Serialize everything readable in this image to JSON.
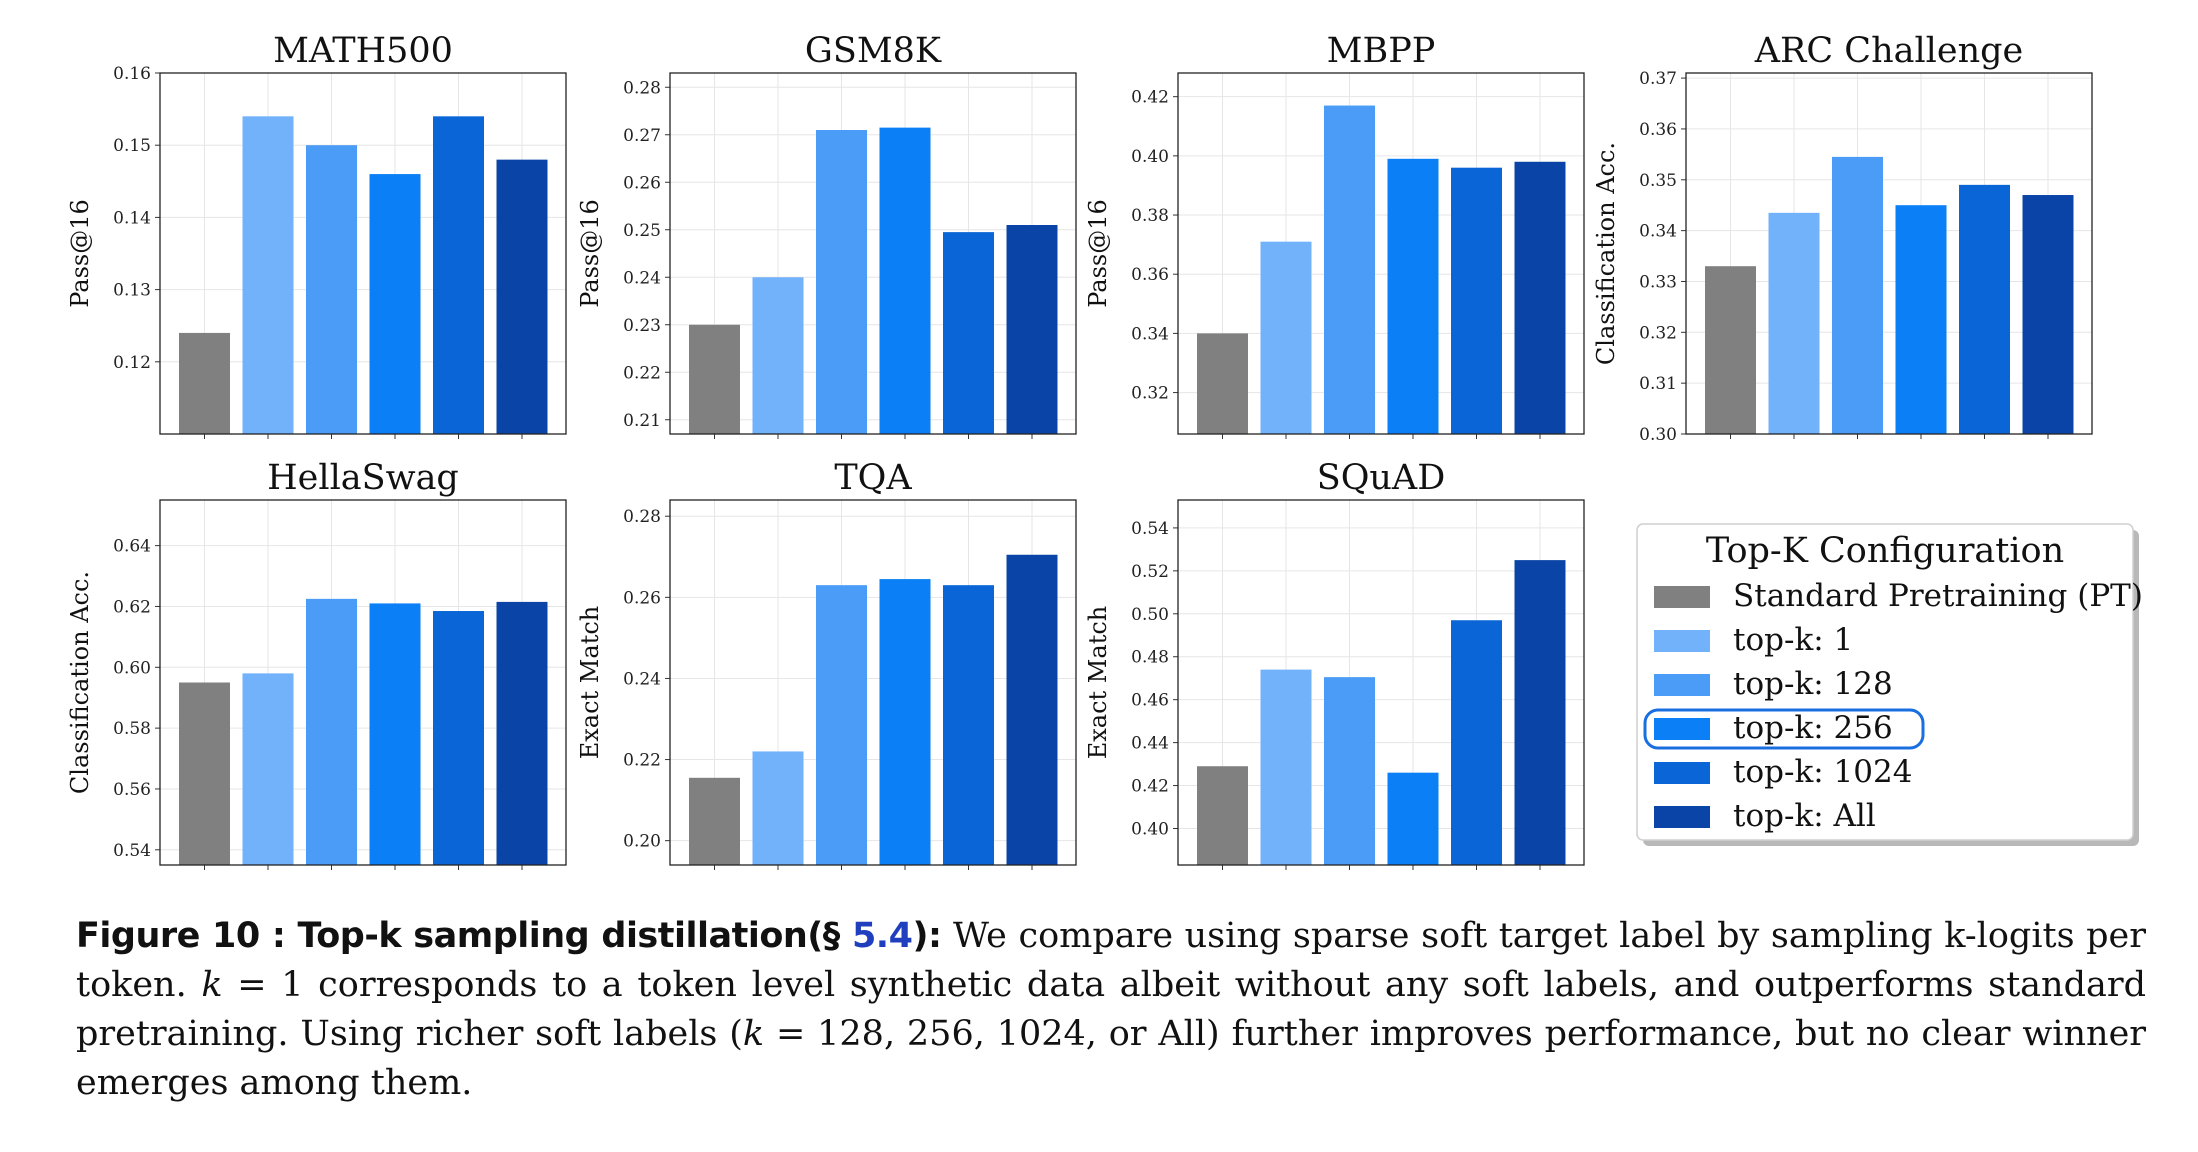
{
  "colors": {
    "pt": "#808080",
    "k1": "#72b2fb",
    "k128": "#4a9cf6",
    "k256": "#0a7ff6",
    "k1024": "#0a66d6",
    "kall": "#0a44a6",
    "highlight": "#1a6fe0"
  },
  "chart_data": [
    {
      "type": "bar",
      "title": "MATH500",
      "ylabel": "Pass@16",
      "ylim": [
        0.11,
        0.16
      ],
      "yticks": [
        "0.12",
        "0.13",
        "0.14",
        "0.15",
        "0.16"
      ],
      "series": [
        {
          "name": "Standard Pretraining (PT)",
          "value": 0.124
        },
        {
          "name": "top-k: 1",
          "value": 0.154
        },
        {
          "name": "top-k: 128",
          "value": 0.15
        },
        {
          "name": "top-k: 256",
          "value": 0.146
        },
        {
          "name": "top-k: 1024",
          "value": 0.154
        },
        {
          "name": "top-k: All",
          "value": 0.148
        }
      ]
    },
    {
      "type": "bar",
      "title": "GSM8K",
      "ylabel": "Pass@16",
      "ylim": [
        0.207,
        0.283
      ],
      "yticks": [
        "0.21",
        "0.22",
        "0.23",
        "0.24",
        "0.25",
        "0.26",
        "0.27",
        "0.28"
      ],
      "series": [
        {
          "name": "Standard Pretraining (PT)",
          "value": 0.23
        },
        {
          "name": "top-k: 1",
          "value": 0.24
        },
        {
          "name": "top-k: 128",
          "value": 0.271
        },
        {
          "name": "top-k: 256",
          "value": 0.2715
        },
        {
          "name": "top-k: 1024",
          "value": 0.2495
        },
        {
          "name": "top-k: All",
          "value": 0.251
        }
      ]
    },
    {
      "type": "bar",
      "title": "MBPP",
      "ylabel": "Pass@16",
      "ylim": [
        0.306,
        0.428
      ],
      "yticks": [
        "0.32",
        "0.34",
        "0.36",
        "0.38",
        "0.40",
        "0.42"
      ],
      "series": [
        {
          "name": "Standard Pretraining (PT)",
          "value": 0.34
        },
        {
          "name": "top-k: 1",
          "value": 0.371
        },
        {
          "name": "top-k: 128",
          "value": 0.417
        },
        {
          "name": "top-k: 256",
          "value": 0.399
        },
        {
          "name": "top-k: 1024",
          "value": 0.396
        },
        {
          "name": "top-k: All",
          "value": 0.398
        }
      ]
    },
    {
      "type": "bar",
      "title": "ARC Challenge",
      "ylabel": "Classification Acc.",
      "ylim": [
        0.3,
        0.371
      ],
      "yticks": [
        "0.30",
        "0.31",
        "0.32",
        "0.33",
        "0.34",
        "0.35",
        "0.36",
        "0.37"
      ],
      "series": [
        {
          "name": "Standard Pretraining (PT)",
          "value": 0.333
        },
        {
          "name": "top-k: 1",
          "value": 0.3435
        },
        {
          "name": "top-k: 128",
          "value": 0.3545
        },
        {
          "name": "top-k: 256",
          "value": 0.345
        },
        {
          "name": "top-k: 1024",
          "value": 0.349
        },
        {
          "name": "top-k: All",
          "value": 0.347
        }
      ]
    },
    {
      "type": "bar",
      "title": "HellaSwag",
      "ylabel": "Classification Acc.",
      "ylim": [
        0.535,
        0.655
      ],
      "yticks": [
        "0.54",
        "0.56",
        "0.58",
        "0.60",
        "0.62",
        "0.64"
      ],
      "series": [
        {
          "name": "Standard Pretraining (PT)",
          "value": 0.595
        },
        {
          "name": "top-k: 1",
          "value": 0.598
        },
        {
          "name": "top-k: 128",
          "value": 0.6225
        },
        {
          "name": "top-k: 256",
          "value": 0.621
        },
        {
          "name": "top-k: 1024",
          "value": 0.6185
        },
        {
          "name": "top-k: All",
          "value": 0.6215
        }
      ]
    },
    {
      "type": "bar",
      "title": "TQA",
      "ylabel": "Exact Match",
      "ylim": [
        0.194,
        0.284
      ],
      "yticks": [
        "0.20",
        "0.22",
        "0.24",
        "0.26",
        "0.28"
      ],
      "series": [
        {
          "name": "Standard Pretraining (PT)",
          "value": 0.2155
        },
        {
          "name": "top-k: 1",
          "value": 0.222
        },
        {
          "name": "top-k: 128",
          "value": 0.263
        },
        {
          "name": "top-k: 256",
          "value": 0.2645
        },
        {
          "name": "top-k: 1024",
          "value": 0.263
        },
        {
          "name": "top-k: All",
          "value": 0.2705
        }
      ]
    },
    {
      "type": "bar",
      "title": "SQuAD",
      "ylabel": "Exact Match",
      "ylim": [
        0.383,
        0.553
      ],
      "yticks": [
        "0.40",
        "0.42",
        "0.44",
        "0.46",
        "0.48",
        "0.50",
        "0.52",
        "0.54"
      ],
      "series": [
        {
          "name": "Standard Pretraining (PT)",
          "value": 0.429
        },
        {
          "name": "top-k: 1",
          "value": 0.474
        },
        {
          "name": "top-k: 128",
          "value": 0.4705
        },
        {
          "name": "top-k: 256",
          "value": 0.426
        },
        {
          "name": "top-k: 1024",
          "value": 0.497
        },
        {
          "name": "top-k: All",
          "value": 0.525
        }
      ]
    }
  ],
  "legend": {
    "title": "Top-K Configuration",
    "entries": [
      "Standard Pretraining (PT)",
      "top-k: 1",
      "top-k: 128",
      "top-k: 256",
      "top-k: 1024",
      "top-k: All"
    ],
    "highlighted": "top-k: 256"
  },
  "caption": {
    "label": "Figure 10 :   Top-k sampling distillation(§ ",
    "ref": "5.4",
    "label_end": "):",
    "text1": " We compare using sparse soft target label by sampling k-logits per token. ",
    "k_symbol": "k",
    "eq1": " = 1",
    "text2": " corresponds to a token level synthetic data albeit without any soft labels, and outperforms standard pretraining. Using richer soft labels (",
    "eq2": " = 128, 256, 1024, or All)",
    "text3": " further improves performance, but no clear winner emerges among them."
  }
}
